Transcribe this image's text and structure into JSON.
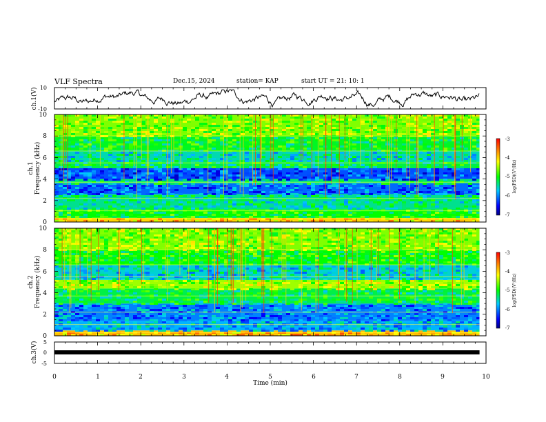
{
  "header": {
    "title": "VLF Spectra",
    "date": "Dec.15, 2024",
    "station": "station= KAP",
    "start": "start  UT  =   21: 10: 1"
  },
  "chart_data": [
    {
      "type": "line",
      "panel": "ch1-waveform",
      "ylabel": "ch.1(V)",
      "ylim": [
        -10,
        10
      ],
      "yticks": [
        "10",
        "-10"
      ],
      "xlim": [
        0,
        10
      ],
      "data_extent_min": 9.85,
      "description_values": {
        "amplitude_range_V": [
          -8,
          8
        ]
      }
    },
    {
      "type": "heatmap",
      "panel": "ch1-spectrogram",
      "ylabel_top": "ch.1",
      "ylabel": "Frequency  (kHz)",
      "ylim": [
        0,
        10
      ],
      "yticks": [
        "0",
        "2",
        "4",
        "6",
        "8",
        "10"
      ],
      "xlim": [
        0,
        9.85
      ],
      "bands": [
        {
          "from": 0.0,
          "to": 0.4,
          "level": -4.0
        },
        {
          "from": 0.4,
          "to": 1.2,
          "level": -5.0
        },
        {
          "from": 1.2,
          "to": 2.6,
          "level": -5.4
        },
        {
          "from": 2.6,
          "to": 3.6,
          "level": -6.1
        },
        {
          "from": 3.6,
          "to": 4.0,
          "level": -5.3
        },
        {
          "from": 4.0,
          "to": 5.0,
          "level": -6.2
        },
        {
          "from": 5.0,
          "to": 5.6,
          "level": -5.2
        },
        {
          "from": 5.6,
          "to": 6.6,
          "level": -5.5
        },
        {
          "from": 6.6,
          "to": 8.0,
          "level": -5.1
        },
        {
          "from": 8.0,
          "to": 10.0,
          "level": -4.6
        }
      ]
    },
    {
      "type": "heatmap",
      "panel": "ch2-spectrogram",
      "ylabel_top": "ch.2",
      "ylabel": "Frequency  (kHz)",
      "ylim": [
        0,
        10
      ],
      "yticks": [
        "0",
        "2",
        "4",
        "6",
        "8",
        "10"
      ],
      "xlim": [
        0,
        9.85
      ],
      "bands": [
        {
          "from": 0.0,
          "to": 0.5,
          "level": -3.9
        },
        {
          "from": 0.5,
          "to": 1.4,
          "level": -5.8
        },
        {
          "from": 1.4,
          "to": 3.0,
          "level": -6.0
        },
        {
          "from": 3.0,
          "to": 4.4,
          "level": -5.2
        },
        {
          "from": 4.4,
          "to": 5.2,
          "level": -4.5
        },
        {
          "from": 5.2,
          "to": 6.6,
          "level": -5.6
        },
        {
          "from": 6.6,
          "to": 8.0,
          "level": -5.0
        },
        {
          "from": 8.0,
          "to": 10.0,
          "level": -4.6
        }
      ]
    },
    {
      "type": "line",
      "panel": "ch3-waveform",
      "ylabel": "ch.3(V)",
      "ylim": [
        -5,
        5
      ],
      "yticks": [
        "5",
        "0",
        "-5"
      ],
      "level_V": -0.4,
      "xlim": [
        0,
        9.85
      ]
    }
  ],
  "colorbar": {
    "label": "log(PSD)(V²/Hz)",
    "ticks": [
      "-3",
      "-4",
      "-5",
      "-6",
      "-7"
    ],
    "range": [
      -7,
      -3
    ]
  },
  "xaxis": {
    "label": "Time  (min)",
    "ticks": [
      "0",
      "1",
      "2",
      "3",
      "4",
      "5",
      "6",
      "7",
      "8",
      "9",
      "10"
    ],
    "xlim": [
      0,
      10
    ]
  }
}
